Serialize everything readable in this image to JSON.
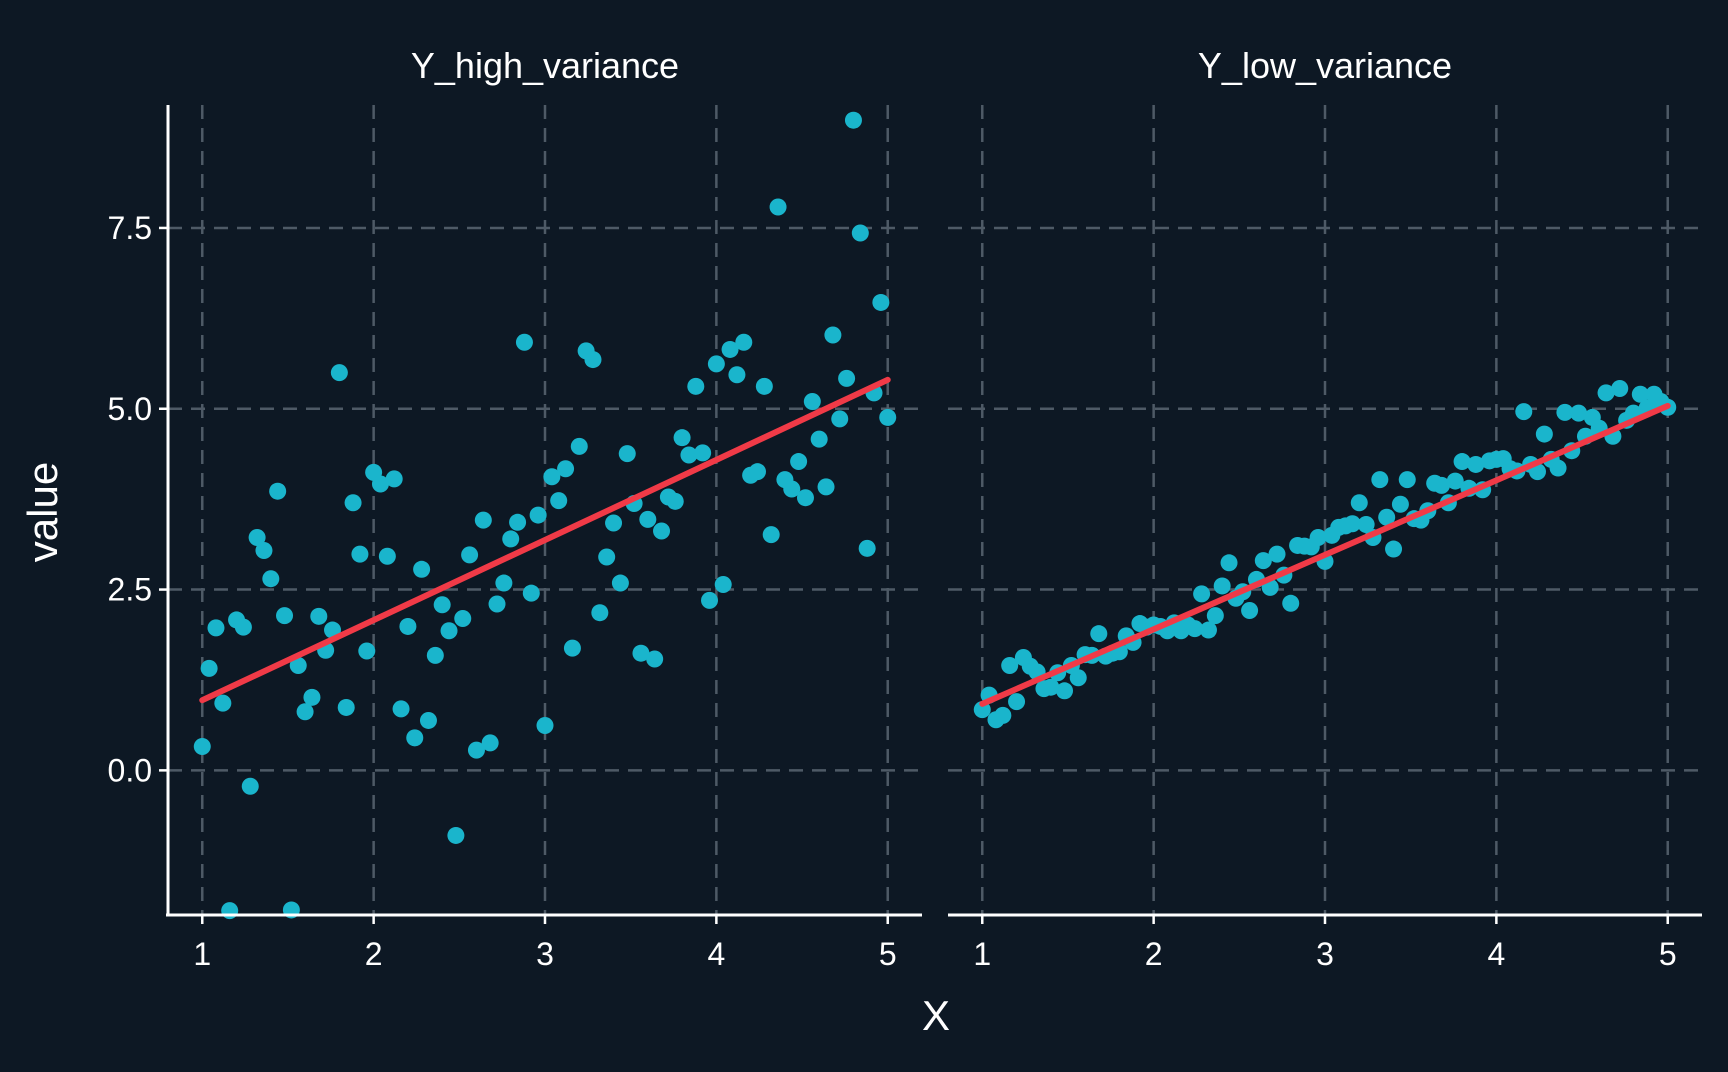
{
  "chart_data": {
    "type": "scatter",
    "xlabel": "X",
    "ylabel": "value",
    "colors": {
      "background": "#0d1824",
      "points": "#1ab5cc",
      "fit": "#f03a47",
      "grid": "#4e5a66",
      "axis": "#ffffff"
    },
    "grid": true,
    "shared_ylim": [
      -2.0,
      9.2
    ],
    "yticks": [
      0.0,
      2.5,
      5.0,
      7.5
    ],
    "ytick_labels": [
      "0.0",
      "2.5",
      "5.0",
      "7.5"
    ],
    "xticks": [
      1,
      2,
      3,
      4,
      5
    ],
    "xtick_labels": [
      "1",
      "2",
      "3",
      "4",
      "5"
    ],
    "panels": [
      {
        "title": "Y_high_variance",
        "xlim": [
          0.8,
          5.2
        ],
        "fit": {
          "x": [
            1.0,
            5.0
          ],
          "y": [
            0.97,
            5.4
          ]
        },
        "points": {
          "x": [
            1.0,
            1.04,
            1.08,
            1.12,
            1.16,
            1.2,
            1.24,
            1.28,
            1.32,
            1.36,
            1.4,
            1.44,
            1.48,
            1.52,
            1.56,
            1.6,
            1.64,
            1.68,
            1.72,
            1.76,
            1.8,
            1.84,
            1.88,
            1.92,
            1.96,
            2.0,
            2.04,
            2.08,
            2.12,
            2.16,
            2.2,
            2.24,
            2.28,
            2.32,
            2.36,
            2.4,
            2.44,
            2.48,
            2.52,
            2.56,
            2.6,
            2.64,
            2.68,
            2.72,
            2.76,
            2.8,
            2.84,
            2.88,
            2.92,
            2.96,
            3.0,
            3.04,
            3.08,
            3.12,
            3.16,
            3.2,
            3.24,
            3.28,
            3.32,
            3.36,
            3.4,
            3.44,
            3.48,
            3.52,
            3.56,
            3.6,
            3.64,
            3.68,
            3.72,
            3.76,
            3.8,
            3.84,
            3.88,
            3.92,
            3.96,
            4.0,
            4.04,
            4.08,
            4.12,
            4.16,
            4.2,
            4.24,
            4.28,
            4.32,
            4.36,
            4.4,
            4.44,
            4.48,
            4.52,
            4.56,
            4.6,
            4.64,
            4.68,
            4.72,
            4.76,
            4.8,
            4.84,
            4.88,
            4.92,
            4.96,
            5.0
          ],
          "y": [
            0.33,
            1.41,
            1.97,
            0.93,
            -1.94,
            2.08,
            1.98,
            -0.22,
            3.22,
            3.04,
            2.65,
            3.86,
            2.14,
            -1.93,
            1.45,
            0.81,
            1.01,
            2.13,
            1.66,
            1.94,
            5.5,
            0.87,
            3.7,
            2.99,
            1.65,
            4.12,
            3.96,
            2.96,
            4.03,
            0.85,
            1.99,
            0.45,
            2.78,
            0.69,
            1.59,
            2.29,
            1.93,
            -0.9,
            2.1,
            2.98,
            0.28,
            3.46,
            0.38,
            2.3,
            2.59,
            3.2,
            3.43,
            5.92,
            2.45,
            3.53,
            0.62,
            4.06,
            3.73,
            4.17,
            1.69,
            4.48,
            5.8,
            5.68,
            2.18,
            2.95,
            3.42,
            2.59,
            4.38,
            3.69,
            1.62,
            3.47,
            1.54,
            3.31,
            3.78,
            3.72,
            4.6,
            4.36,
            5.31,
            4.39,
            2.35,
            5.62,
            2.57,
            5.82,
            5.47,
            5.92,
            4.08,
            4.13,
            5.31,
            3.26,
            7.79,
            4.02,
            3.89,
            4.27,
            3.77,
            5.1,
            4.58,
            3.92,
            6.02,
            4.86,
            5.42,
            8.99,
            7.43,
            3.07,
            5.22,
            6.47,
            4.88
          ]
        }
      },
      {
        "title": "Y_low_variance",
        "xlim": [
          0.8,
          5.2
        ],
        "fit": {
          "x": [
            1.0,
            5.0
          ],
          "y": [
            0.92,
            5.04
          ]
        },
        "points": {
          "x": [
            1.0,
            1.04,
            1.08,
            1.12,
            1.16,
            1.2,
            1.24,
            1.28,
            1.32,
            1.36,
            1.4,
            1.44,
            1.48,
            1.52,
            1.56,
            1.6,
            1.64,
            1.68,
            1.72,
            1.76,
            1.8,
            1.84,
            1.88,
            1.92,
            1.96,
            2.0,
            2.04,
            2.08,
            2.12,
            2.16,
            2.2,
            2.24,
            2.28,
            2.32,
            2.36,
            2.4,
            2.44,
            2.48,
            2.52,
            2.56,
            2.6,
            2.64,
            2.68,
            2.72,
            2.76,
            2.8,
            2.84,
            2.88,
            2.92,
            2.96,
            3.0,
            3.04,
            3.08,
            3.12,
            3.16,
            3.2,
            3.24,
            3.28,
            3.32,
            3.36,
            3.4,
            3.44,
            3.48,
            3.52,
            3.56,
            3.6,
            3.64,
            3.68,
            3.72,
            3.76,
            3.8,
            3.84,
            3.88,
            3.92,
            3.96,
            4.0,
            4.04,
            4.08,
            4.12,
            4.16,
            4.2,
            4.24,
            4.28,
            4.32,
            4.36,
            4.4,
            4.44,
            4.48,
            4.52,
            4.56,
            4.6,
            4.64,
            4.68,
            4.72,
            4.76,
            4.8,
            4.84,
            4.88,
            4.92,
            4.96,
            5.0
          ],
          "y": [
            0.84,
            1.04,
            0.7,
            0.76,
            1.45,
            0.95,
            1.56,
            1.44,
            1.36,
            1.13,
            1.15,
            1.35,
            1.1,
            1.45,
            1.28,
            1.6,
            1.59,
            1.89,
            1.58,
            1.62,
            1.64,
            1.86,
            1.77,
            2.03,
            1.98,
            2.01,
            1.99,
            1.93,
            2.04,
            1.93,
            2.01,
            1.96,
            2.44,
            1.94,
            2.14,
            2.55,
            2.87,
            2.38,
            2.47,
            2.21,
            2.64,
            2.9,
            2.53,
            2.99,
            2.7,
            2.31,
            3.11,
            3.1,
            3.09,
            3.22,
            2.89,
            3.25,
            3.36,
            3.38,
            3.41,
            3.7,
            3.4,
            3.22,
            4.02,
            3.5,
            3.06,
            3.68,
            4.02,
            3.48,
            3.46,
            3.59,
            3.97,
            3.94,
            3.7,
            4.0,
            4.27,
            3.9,
            4.23,
            3.88,
            4.28,
            4.3,
            4.31,
            4.17,
            4.14,
            4.96,
            4.23,
            4.13,
            4.65,
            4.3,
            4.18,
            4.95,
            4.42,
            4.94,
            4.62,
            4.88,
            4.73,
            5.22,
            4.62,
            5.28,
            4.84,
            4.94,
            5.2,
            5.01,
            5.2,
            5.1,
            5.02
          ]
        }
      }
    ]
  }
}
